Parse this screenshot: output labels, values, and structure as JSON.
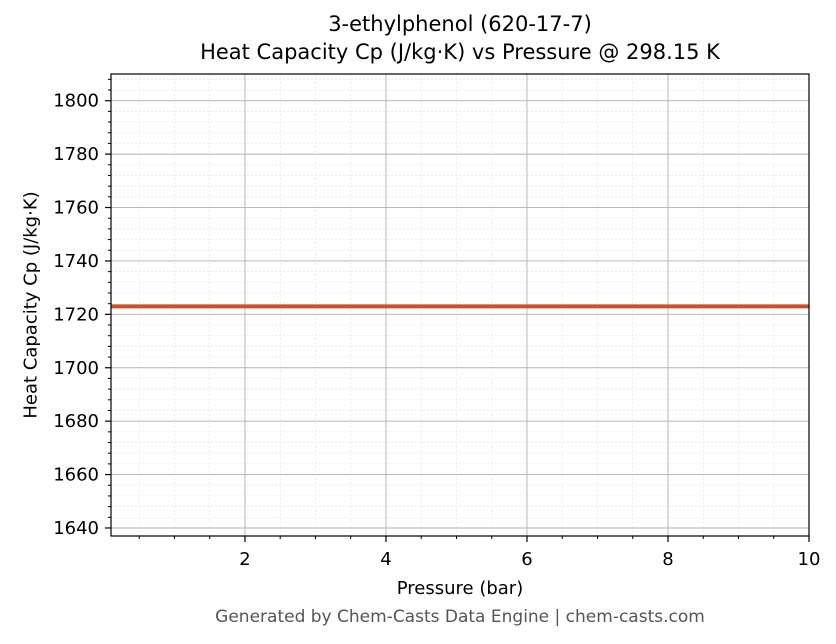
{
  "chart_data": {
    "type": "line",
    "title": "3-ethylphenol (620-17-7)",
    "subtitle": "Heat Capacity Cp (J/kg·K) vs Pressure @ 298.15 K",
    "xlabel": "Pressure (bar)",
    "ylabel": "Heat Capacity Cp (J/kg·K)",
    "xlim": [
      0.1,
      10
    ],
    "ylim": [
      1637,
      1810
    ],
    "x_ticks": [
      2,
      4,
      6,
      8,
      10
    ],
    "y_ticks": [
      1640,
      1660,
      1680,
      1700,
      1720,
      1740,
      1760,
      1780,
      1800
    ],
    "grid": true,
    "series": [
      {
        "color": "#c8522a",
        "x": [
          0.1,
          1,
          2,
          3,
          4,
          5,
          6,
          7,
          8,
          9,
          10
        ],
        "y": [
          1723,
          1723,
          1723,
          1723,
          1723,
          1723,
          1723,
          1723,
          1723,
          1723,
          1723
        ]
      }
    ]
  },
  "footer": "Generated by Chem-Casts Data Engine | chem-casts.com"
}
